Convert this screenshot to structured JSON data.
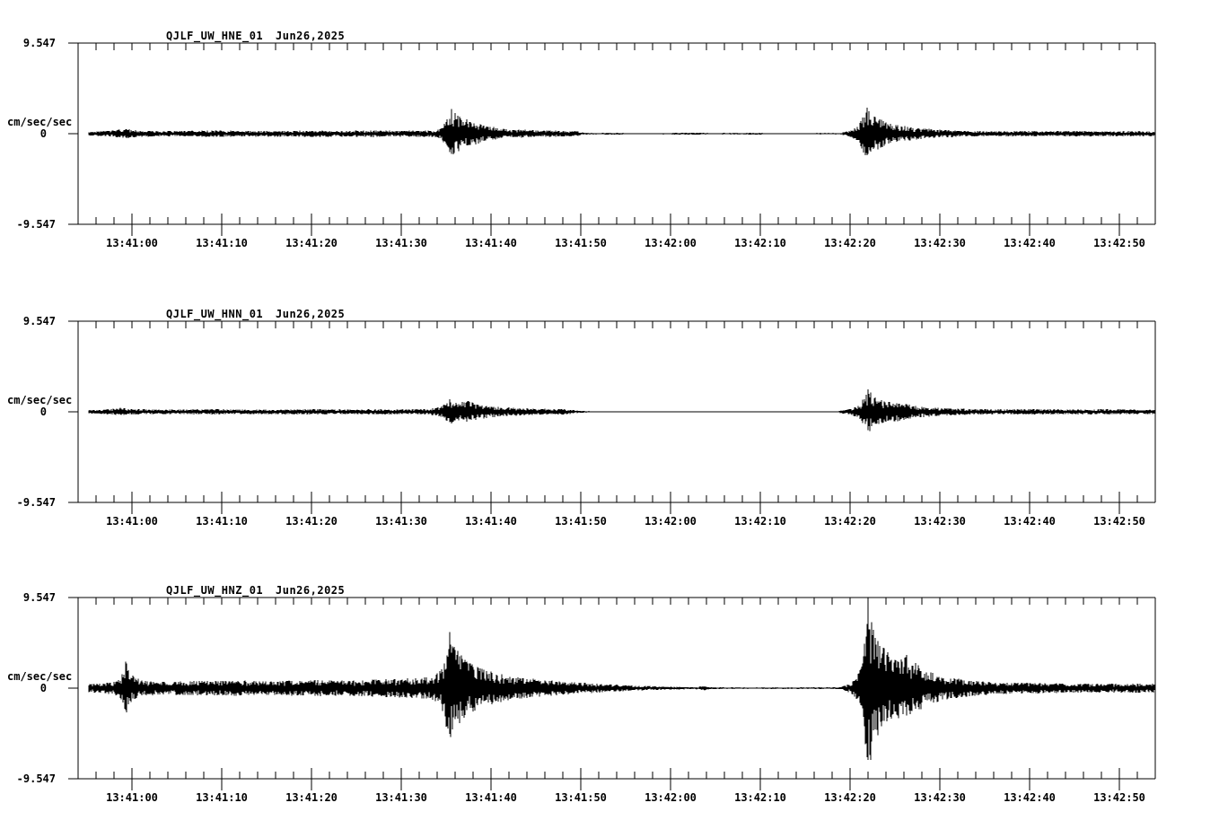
{
  "figure": {
    "background_color": "#ffffff",
    "trace_color": "#000000",
    "y_top_label": "9.547",
    "y_zero_label": "0",
    "y_bottom_label": "-9.547",
    "y_unit_label": "cm/sec/sec",
    "date_label": "Jun26,2025",
    "x_tick_labels": [
      "13:41:00",
      "13:41:10",
      "13:41:20",
      "13:41:30",
      "13:41:40",
      "13:41:50",
      "13:42:00",
      "13:42:10",
      "13:42:20",
      "13:42:30",
      "13:42:40",
      "13:42:50"
    ]
  },
  "chart_data": [
    {
      "type": "line",
      "title": "QJLF_UW_HNE_01",
      "date": "Jun26,2025",
      "ylabel": "cm/sec/sec",
      "ylim": [
        -9.547,
        9.547
      ],
      "y_tick_labels": [
        "9.547",
        "0",
        "-9.547"
      ],
      "x_window": {
        "start": "13:40:54",
        "end": "13:42:54",
        "seconds": 120
      },
      "x_tick_labels": [
        "13:41:00",
        "13:41:10",
        "13:41:20",
        "13:41:30",
        "13:41:40",
        "13:41:50",
        "13:42:00",
        "13:42:10",
        "13:42:20",
        "13:42:30",
        "13:42:40",
        "13:42:50"
      ],
      "events": [
        {
          "time": "13:41:36",
          "peak_amp": 2.75
        },
        {
          "time": "13:42:22",
          "peak_amp": 2.9
        }
      ],
      "quiet_gap": {
        "from": "13:41:51",
        "to": "13:42:19"
      },
      "envelope": [
        [
          1.2,
          0.22
        ],
        [
          3,
          0.28
        ],
        [
          5.5,
          0.5
        ],
        [
          6.5,
          0.34
        ],
        [
          9,
          0.28
        ],
        [
          12,
          0.3
        ],
        [
          15,
          0.34
        ],
        [
          18,
          0.3
        ],
        [
          21,
          0.32
        ],
        [
          24,
          0.3
        ],
        [
          27,
          0.34
        ],
        [
          30,
          0.3
        ],
        [
          33,
          0.36
        ],
        [
          35,
          0.3
        ],
        [
          37,
          0.32
        ],
        [
          39.5,
          0.34
        ],
        [
          40.4,
          0.5
        ],
        [
          41.1,
          1.5
        ],
        [
          41.6,
          2.6
        ],
        [
          42.3,
          1.9
        ],
        [
          43.3,
          1.5
        ],
        [
          44.5,
          1.05
        ],
        [
          46,
          0.75
        ],
        [
          48,
          0.5
        ],
        [
          50,
          0.4
        ],
        [
          52,
          0.36
        ],
        [
          54,
          0.3
        ],
        [
          55.5,
          0.28
        ],
        [
          56.6,
          0.1
        ],
        [
          58,
          0.07
        ],
        [
          60,
          0.12
        ],
        [
          61,
          0.07
        ],
        [
          65,
          0.07
        ],
        [
          69.6,
          0.12
        ],
        [
          70.3,
          0.07
        ],
        [
          75.8,
          0.1
        ],
        [
          76.5,
          0.07
        ],
        [
          81,
          0.07
        ],
        [
          85,
          0.08
        ],
        [
          85.9,
          0.3
        ],
        [
          86.9,
          0.8
        ],
        [
          87.9,
          2.75
        ],
        [
          88.7,
          1.8
        ],
        [
          90,
          1.25
        ],
        [
          91.5,
          0.9
        ],
        [
          93,
          0.65
        ],
        [
          95,
          0.48
        ],
        [
          97,
          0.38
        ],
        [
          99,
          0.3
        ],
        [
          102,
          0.26
        ],
        [
          105,
          0.3
        ],
        [
          108,
          0.26
        ],
        [
          111,
          0.3
        ],
        [
          114,
          0.26
        ],
        [
          117,
          0.28
        ],
        [
          120,
          0.26
        ]
      ]
    },
    {
      "type": "line",
      "title": "QJLF_UW_HNN_01",
      "date": "Jun26,2025",
      "ylabel": "cm/sec/sec",
      "ylim": [
        -9.547,
        9.547
      ],
      "y_tick_labels": [
        "9.547",
        "0",
        "-9.547"
      ],
      "x_window": {
        "start": "13:40:54",
        "end": "13:42:54",
        "seconds": 120
      },
      "x_tick_labels": [
        "13:41:00",
        "13:41:10",
        "13:41:20",
        "13:41:30",
        "13:41:40",
        "13:41:50",
        "13:42:00",
        "13:42:10",
        "13:42:20",
        "13:42:30",
        "13:42:40",
        "13:42:50"
      ],
      "events": [
        {
          "time": "13:41:36",
          "peak_amp": 1.4
        },
        {
          "time": "13:42:22",
          "peak_amp": 2.4
        }
      ],
      "quiet_gap": {
        "from": "13:41:51",
        "to": "13:42:19"
      },
      "envelope": [
        [
          1.2,
          0.2
        ],
        [
          3,
          0.26
        ],
        [
          5,
          0.45
        ],
        [
          6,
          0.3
        ],
        [
          9,
          0.24
        ],
        [
          12,
          0.26
        ],
        [
          15,
          0.28
        ],
        [
          18,
          0.24
        ],
        [
          21,
          0.26
        ],
        [
          24,
          0.26
        ],
        [
          27,
          0.28
        ],
        [
          30,
          0.26
        ],
        [
          33,
          0.28
        ],
        [
          36,
          0.26
        ],
        [
          39,
          0.3
        ],
        [
          40.4,
          0.55
        ],
        [
          41.4,
          1.3
        ],
        [
          42.4,
          0.95
        ],
        [
          43.4,
          1.15
        ],
        [
          44.5,
          0.8
        ],
        [
          46,
          0.6
        ],
        [
          48,
          0.45
        ],
        [
          50,
          0.36
        ],
        [
          52,
          0.32
        ],
        [
          54,
          0.34
        ],
        [
          55.6,
          0.14
        ],
        [
          57,
          0.07
        ],
        [
          60,
          0.06
        ],
        [
          65,
          0.06
        ],
        [
          70,
          0.06
        ],
        [
          75,
          0.06
        ],
        [
          80,
          0.06
        ],
        [
          84.5,
          0.07
        ],
        [
          85.9,
          0.3
        ],
        [
          87,
          0.65
        ],
        [
          88,
          2.35
        ],
        [
          88.8,
          1.5
        ],
        [
          90,
          1.1
        ],
        [
          91.5,
          0.95
        ],
        [
          93,
          0.7
        ],
        [
          95,
          0.52
        ],
        [
          97,
          0.4
        ],
        [
          99,
          0.32
        ],
        [
          102,
          0.27
        ],
        [
          106,
          0.3
        ],
        [
          110,
          0.26
        ],
        [
          114,
          0.28
        ],
        [
          117,
          0.26
        ],
        [
          120,
          0.26
        ]
      ]
    },
    {
      "type": "line",
      "title": "QJLF_UW_HNZ_01",
      "date": "Jun26,2025",
      "ylabel": "cm/sec/sec",
      "ylim": [
        -9.547,
        9.547
      ],
      "y_tick_labels": [
        "9.547",
        "0",
        "-9.547"
      ],
      "x_window": {
        "start": "13:40:54",
        "end": "13:42:54",
        "seconds": 120
      },
      "x_tick_labels": [
        "13:41:00",
        "13:41:10",
        "13:41:20",
        "13:41:30",
        "13:41:40",
        "13:41:50",
        "13:42:00",
        "13:42:10",
        "13:42:20",
        "13:42:30",
        "13:42:40",
        "13:42:50"
      ],
      "events": [
        {
          "time": "13:40:59",
          "peak_amp": 2.8
        },
        {
          "time": "13:41:36",
          "peak_amp": 6.2
        },
        {
          "time": "13:42:22",
          "peak_amp": 9.3
        }
      ],
      "quiet_gap": {
        "from": "13:42:05",
        "to": "13:42:19"
      },
      "envelope": [
        [
          1.2,
          0.42
        ],
        [
          3,
          0.55
        ],
        [
          4.6,
          0.85
        ],
        [
          5.3,
          2.8
        ],
        [
          6.1,
          1.3
        ],
        [
          7,
          0.85
        ],
        [
          9,
          0.68
        ],
        [
          12,
          0.72
        ],
        [
          15,
          0.78
        ],
        [
          18,
          0.8
        ],
        [
          21,
          0.75
        ],
        [
          24,
          0.8
        ],
        [
          27,
          0.85
        ],
        [
          30,
          0.8
        ],
        [
          33,
          0.9
        ],
        [
          36,
          1.0
        ],
        [
          38,
          1.1
        ],
        [
          39.5,
          1.25
        ],
        [
          40.5,
          2.0
        ],
        [
          41.4,
          5.9
        ],
        [
          42.3,
          3.9
        ],
        [
          43.3,
          2.8
        ],
        [
          44.5,
          2.2
        ],
        [
          46,
          1.75
        ],
        [
          48,
          1.25
        ],
        [
          50,
          1.05
        ],
        [
          52,
          0.88
        ],
        [
          54,
          0.72
        ],
        [
          56,
          0.58
        ],
        [
          58,
          0.46
        ],
        [
          60,
          0.36
        ],
        [
          63,
          0.24
        ],
        [
          66,
          0.16
        ],
        [
          68.8,
          0.1
        ],
        [
          69.6,
          0.26
        ],
        [
          70.4,
          0.1
        ],
        [
          74,
          0.08
        ],
        [
          78,
          0.08
        ],
        [
          82,
          0.08
        ],
        [
          84.8,
          0.1
        ],
        [
          85.6,
          0.3
        ],
        [
          86.6,
          0.95
        ],
        [
          87.4,
          2.6
        ],
        [
          88,
          9.2
        ],
        [
          88.8,
          5.3
        ],
        [
          89.8,
          4.2
        ],
        [
          91,
          3.0
        ],
        [
          92.3,
          3.5
        ],
        [
          93.6,
          2.4
        ],
        [
          95,
          1.65
        ],
        [
          97,
          1.15
        ],
        [
          99,
          0.88
        ],
        [
          101,
          0.72
        ],
        [
          103,
          0.62
        ],
        [
          106,
          0.56
        ],
        [
          110,
          0.5
        ],
        [
          114,
          0.46
        ],
        [
          117,
          0.5
        ],
        [
          120,
          0.46
        ]
      ]
    }
  ]
}
